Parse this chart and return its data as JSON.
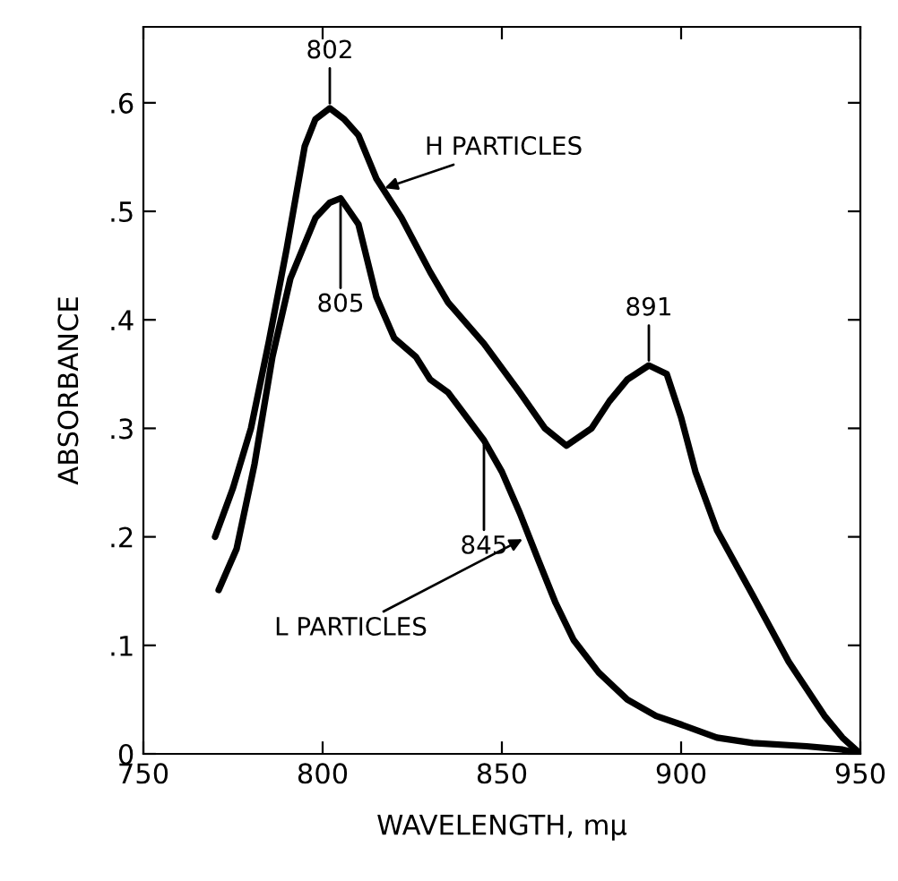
{
  "chart_data": {
    "type": "line",
    "xlabel": "WAVELENGTH, mμ",
    "ylabel": "ABSORBANCE",
    "xlim": [
      750,
      950
    ],
    "xticks": [
      750,
      800,
      850,
      900,
      950
    ],
    "ylim": [
      0,
      0.67
    ],
    "yticks": [
      0,
      {
        "value": 0.1,
        "label": ".1"
      },
      {
        "value": 0.2,
        "label": ".2"
      },
      {
        "value": 0.3,
        "label": ".3"
      },
      {
        "value": 0.4,
        "label": ".4"
      },
      {
        "value": 0.5,
        "label": ".5"
      },
      {
        "value": 0.6,
        "label": ".6"
      }
    ],
    "grid": false,
    "legend": false,
    "marker": "none",
    "line_style": "solid",
    "series": [
      {
        "color": "#000000",
        "x": [
          770,
          775,
          780,
          785,
          790,
          795,
          798,
          802,
          806,
          810,
          815,
          822,
          830,
          835,
          845,
          855,
          862,
          868,
          875,
          880,
          885,
          891,
          896,
          900,
          904,
          910,
          920,
          930,
          940,
          945,
          950
        ],
        "values": [
          0.2,
          0.245,
          0.3,
          0.38,
          0.466,
          0.56,
          0.585,
          0.595,
          0.585,
          0.57,
          0.53,
          0.494,
          0.444,
          0.416,
          0.378,
          0.333,
          0.3,
          0.284,
          0.3,
          0.325,
          0.345,
          0.358,
          0.35,
          0.31,
          0.26,
          0.206,
          0.146,
          0.085,
          0.035,
          0.015,
          0
        ]
      },
      {
        "color": "#000000",
        "x": [
          771,
          776,
          781,
          786,
          791,
          798,
          802,
          805,
          810,
          815,
          820,
          826,
          830,
          835,
          845,
          850,
          855,
          860,
          865,
          870,
          877,
          885,
          893,
          900,
          910,
          920,
          935,
          945,
          950
        ],
        "values": [
          0.151,
          0.189,
          0.267,
          0.366,
          0.438,
          0.494,
          0.508,
          0.512,
          0.488,
          0.421,
          0.383,
          0.366,
          0.345,
          0.333,
          0.289,
          0.26,
          0.222,
          0.18,
          0.139,
          0.105,
          0.075,
          0.05,
          0.035,
          0.027,
          0.015,
          0.01,
          0.007,
          0.004,
          0
        ]
      }
    ],
    "annotations": [
      {
        "text": "802",
        "x": 802,
        "y": 0.595
      },
      {
        "text": "805",
        "x": 805,
        "y": 0.512
      },
      {
        "text": "845",
        "x": 845,
        "y": 0.289
      },
      {
        "text": "891",
        "x": 891,
        "y": 0.358
      },
      {
        "text": "H PARTICLES",
        "x": 816,
        "y": 0.52
      },
      {
        "text": "L PARTICLES",
        "x": 857,
        "y": 0.2
      }
    ]
  }
}
